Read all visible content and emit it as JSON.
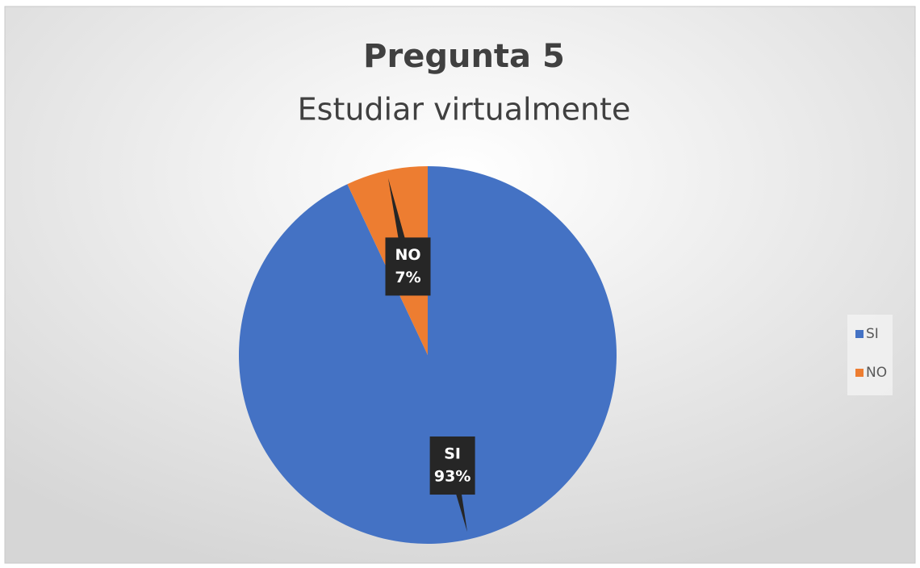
{
  "chart_data": {
    "type": "pie",
    "title": "Pregunta 5",
    "subtitle": "Estudiar virtualmente",
    "categories": [
      "SI",
      "NO"
    ],
    "values": [
      93,
      7
    ],
    "value_labels": [
      "93%",
      "7%"
    ],
    "colors": [
      "#4472c4",
      "#ed7d31"
    ],
    "legend": "right"
  }
}
